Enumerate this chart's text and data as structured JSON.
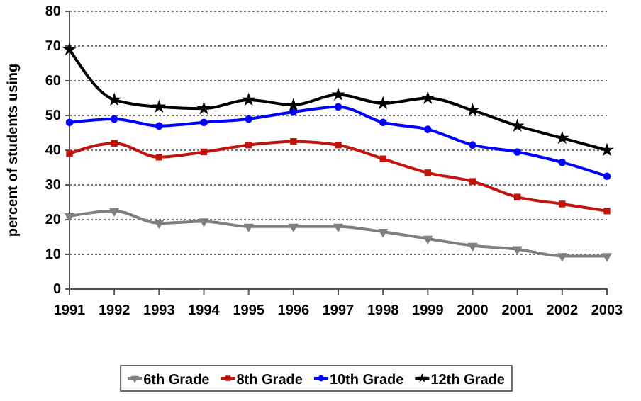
{
  "chart_data": {
    "type": "line",
    "ylabel": "percent of students using",
    "x": [
      1991,
      1992,
      1993,
      1994,
      1995,
      1996,
      1997,
      1998,
      1999,
      2000,
      2001,
      2002,
      2003
    ],
    "xlim": [
      1991,
      2003
    ],
    "xticks": [
      1991,
      1992,
      1993,
      1994,
      1995,
      1996,
      1997,
      1998,
      1999,
      2000,
      2001,
      2002,
      2003
    ],
    "ylim": [
      0,
      80
    ],
    "yticks": [
      0,
      10,
      20,
      30,
      40,
      50,
      60,
      70,
      80
    ],
    "grid": "y",
    "legend": "bottom",
    "series": [
      {
        "name": "6th Grade",
        "color": "#7f7f7f",
        "marker": "triangle",
        "values": [
          21,
          22.5,
          19,
          19.5,
          18,
          18,
          18,
          16.5,
          14.5,
          12.5,
          11.5,
          9.5,
          9.5
        ]
      },
      {
        "name": "8th Grade",
        "color": "#c0140c",
        "marker": "square",
        "values": [
          39,
          42,
          38,
          39.5,
          41.5,
          42.5,
          41.5,
          37.5,
          33.5,
          31,
          26.5,
          24.5,
          22.5
        ]
      },
      {
        "name": "10th Grade",
        "color": "#0000ff",
        "marker": "circle",
        "values": [
          48,
          49,
          47,
          48,
          49,
          51,
          52.5,
          48,
          46,
          41.5,
          39.5,
          36.5,
          32.5
        ]
      },
      {
        "name": "12th Grade",
        "color": "#000000",
        "marker": "star",
        "values": [
          69,
          54.5,
          52.5,
          52,
          54.5,
          53,
          56,
          53.5,
          55,
          51.5,
          47,
          43.5,
          40
        ]
      }
    ]
  }
}
